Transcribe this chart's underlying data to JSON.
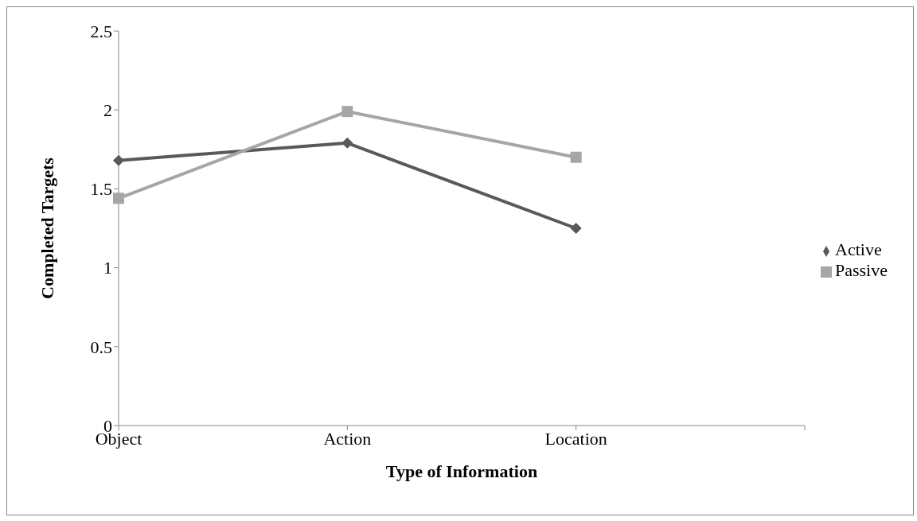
{
  "chart_data": {
    "type": "line",
    "xlabel": "Type of Information",
    "ylabel": "Completed Targets",
    "categories": [
      "Object",
      "Action",
      "Location",
      null
    ],
    "series": [
      {
        "name": "Active",
        "color": "#595959",
        "values": [
          1.68,
          1.79,
          1.25,
          null
        ],
        "marker": "diamond"
      },
      {
        "name": "Passive",
        "color": "#a6a6a6",
        "values": [
          1.44,
          1.99,
          1.7,
          null
        ],
        "marker": "square"
      }
    ],
    "ylim": [
      0,
      2.5
    ],
    "yticks": [
      0,
      0.5,
      1,
      1.5,
      2,
      2.5
    ],
    "grid": false,
    "legend": "right"
  }
}
